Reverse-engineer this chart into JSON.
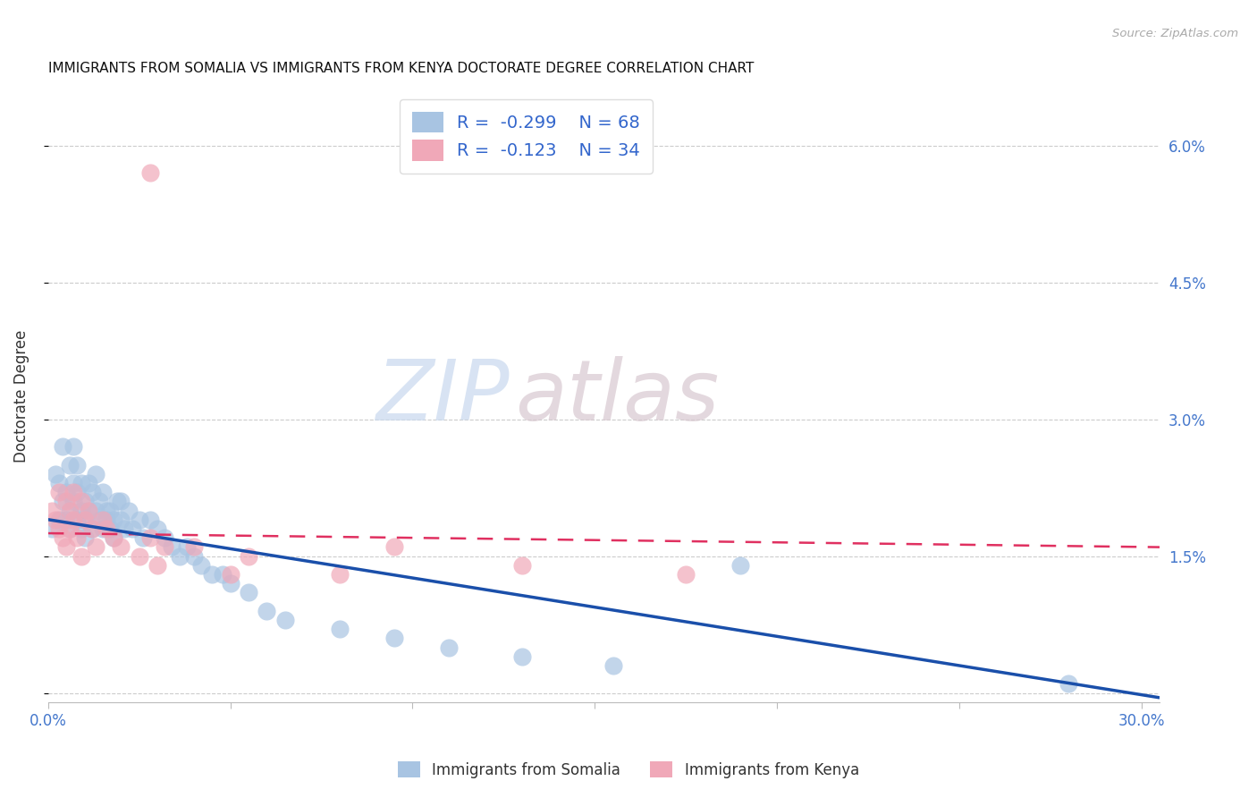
{
  "title": "IMMIGRANTS FROM SOMALIA VS IMMIGRANTS FROM KENYA DOCTORATE DEGREE CORRELATION CHART",
  "source": "Source: ZipAtlas.com",
  "ylabel": "Doctorate Degree",
  "xlim": [
    0.0,
    0.305
  ],
  "ylim": [
    -0.001,
    0.066
  ],
  "x_ticks": [
    0.0,
    0.05,
    0.1,
    0.15,
    0.2,
    0.25,
    0.3
  ],
  "y_ticks": [
    0.0,
    0.015,
    0.03,
    0.045,
    0.06
  ],
  "r_somalia": -0.299,
  "n_somalia": 68,
  "r_kenya": -0.123,
  "n_kenya": 34,
  "color_somalia": "#a8c4e2",
  "color_kenya": "#f0a8b8",
  "line_color_somalia": "#1a4faa",
  "line_color_kenya": "#e03060",
  "watermark_zip": "ZIP",
  "watermark_atlas": "atlas",
  "intercept_somalia": 0.019,
  "slope_somalia": -0.064,
  "intercept_kenya": 0.0175,
  "slope_kenya": -0.005,
  "somalia_x": [
    0.001,
    0.002,
    0.003,
    0.003,
    0.004,
    0.004,
    0.005,
    0.005,
    0.006,
    0.006,
    0.006,
    0.007,
    0.007,
    0.007,
    0.008,
    0.008,
    0.008,
    0.009,
    0.009,
    0.009,
    0.01,
    0.01,
    0.01,
    0.011,
    0.011,
    0.012,
    0.012,
    0.013,
    0.013,
    0.014,
    0.014,
    0.015,
    0.015,
    0.016,
    0.016,
    0.017,
    0.017,
    0.018,
    0.018,
    0.019,
    0.02,
    0.02,
    0.021,
    0.022,
    0.023,
    0.025,
    0.026,
    0.028,
    0.03,
    0.032,
    0.034,
    0.036,
    0.038,
    0.04,
    0.042,
    0.045,
    0.048,
    0.05,
    0.055,
    0.06,
    0.065,
    0.08,
    0.095,
    0.11,
    0.13,
    0.155,
    0.19,
    0.28
  ],
  "somalia_y": [
    0.018,
    0.024,
    0.019,
    0.023,
    0.027,
    0.021,
    0.019,
    0.022,
    0.025,
    0.02,
    0.018,
    0.023,
    0.021,
    0.027,
    0.019,
    0.022,
    0.025,
    0.018,
    0.02,
    0.023,
    0.019,
    0.021,
    0.017,
    0.02,
    0.023,
    0.018,
    0.022,
    0.02,
    0.024,
    0.019,
    0.021,
    0.018,
    0.022,
    0.019,
    0.02,
    0.018,
    0.02,
    0.019,
    0.017,
    0.021,
    0.019,
    0.021,
    0.018,
    0.02,
    0.018,
    0.019,
    0.017,
    0.019,
    0.018,
    0.017,
    0.016,
    0.015,
    0.016,
    0.015,
    0.014,
    0.013,
    0.013,
    0.012,
    0.011,
    0.009,
    0.008,
    0.007,
    0.006,
    0.005,
    0.004,
    0.003,
    0.014,
    0.001
  ],
  "kenya_x": [
    0.001,
    0.002,
    0.003,
    0.003,
    0.004,
    0.005,
    0.005,
    0.006,
    0.006,
    0.007,
    0.007,
    0.008,
    0.009,
    0.009,
    0.01,
    0.011,
    0.012,
    0.013,
    0.015,
    0.016,
    0.018,
    0.02,
    0.025,
    0.028,
    0.03,
    0.032,
    0.04,
    0.05,
    0.055,
    0.08,
    0.095,
    0.13,
    0.175,
    0.028
  ],
  "kenya_y": [
    0.02,
    0.019,
    0.018,
    0.022,
    0.017,
    0.021,
    0.016,
    0.02,
    0.018,
    0.019,
    0.022,
    0.017,
    0.021,
    0.015,
    0.019,
    0.02,
    0.018,
    0.016,
    0.019,
    0.018,
    0.017,
    0.016,
    0.015,
    0.017,
    0.014,
    0.016,
    0.016,
    0.013,
    0.015,
    0.013,
    0.016,
    0.014,
    0.013,
    0.057
  ]
}
